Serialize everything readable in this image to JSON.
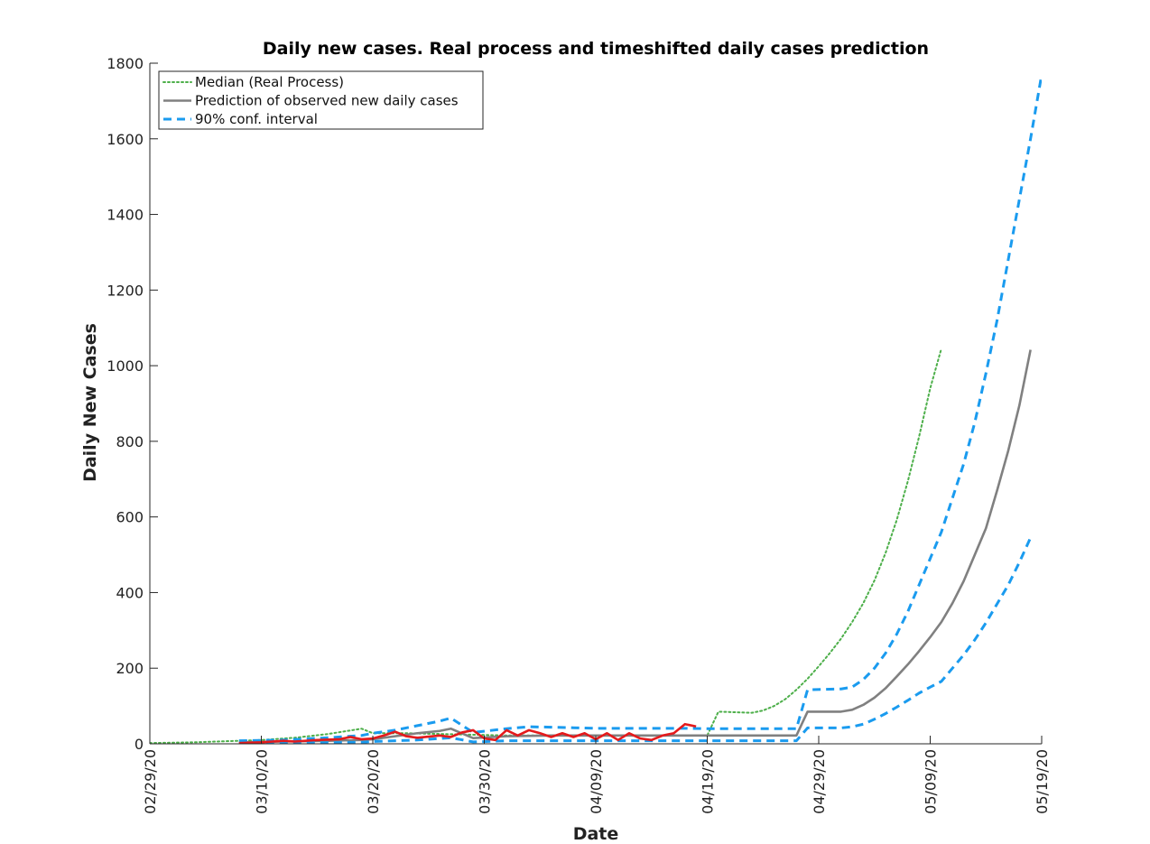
{
  "chart_data": {
    "type": "line",
    "title": "Daily new cases. Real process and timeshifted daily cases prediction",
    "xlabel": "Date",
    "ylabel": "Daily New Cases",
    "x_axis_type": "date",
    "xlim": [
      "2020-02-29",
      "2020-05-19"
    ],
    "ylim": [
      0,
      1800
    ],
    "x_ticks": [
      "2020-02-29",
      "2020-03-10",
      "2020-03-20",
      "2020-03-30",
      "2020-04-09",
      "2020-04-19",
      "2020-04-29",
      "2020-05-09",
      "2020-05-19"
    ],
    "x_tick_labels": [
      "02/29/20",
      "03/10/20",
      "03/20/20",
      "03/30/20",
      "04/09/20",
      "04/19/20",
      "04/29/20",
      "05/09/20",
      "05/19/20"
    ],
    "y_ticks": [
      0,
      200,
      400,
      600,
      800,
      1000,
      1200,
      1400,
      1600,
      1800
    ],
    "y_tick_labels": [
      "0",
      "200",
      "400",
      "600",
      "800",
      "1000",
      "1200",
      "1400",
      "1600",
      "1800"
    ],
    "grid": false,
    "legend": {
      "position": "top-left",
      "entries": [
        {
          "label": "Median (Real Process)",
          "series": "median",
          "style": "dotted",
          "color": "#4daf4a"
        },
        {
          "label": "Prediction of observed new daily cases",
          "series": "prediction",
          "style": "solid",
          "color": "#808080"
        },
        {
          "label": "90% conf. interval",
          "series": "ci_upper",
          "style": "dashed",
          "color": "#1a9bef"
        }
      ]
    },
    "series": [
      {
        "id": "median",
        "name": "Median (Real Process)",
        "color": "#4daf4a",
        "style": "dotted",
        "points": [
          [
            "2020-02-29",
            2
          ],
          [
            "2020-03-04",
            4
          ],
          [
            "2020-03-08",
            8
          ],
          [
            "2020-03-10",
            10
          ],
          [
            "2020-03-13",
            16
          ],
          [
            "2020-03-16",
            26
          ],
          [
            "2020-03-19",
            40
          ],
          [
            "2020-03-20",
            28
          ],
          [
            "2020-03-23",
            28
          ],
          [
            "2020-03-26",
            26
          ],
          [
            "2020-03-29",
            24
          ],
          [
            "2020-04-01",
            22
          ],
          [
            "2020-04-05",
            22
          ],
          [
            "2020-04-09",
            22
          ],
          [
            "2020-04-13",
            22
          ],
          [
            "2020-04-17",
            22
          ],
          [
            "2020-04-19",
            22
          ],
          [
            "2020-04-20",
            85
          ],
          [
            "2020-04-23",
            82
          ],
          [
            "2020-04-24",
            88
          ],
          [
            "2020-04-25",
            100
          ],
          [
            "2020-04-26",
            118
          ],
          [
            "2020-04-27",
            143
          ],
          [
            "2020-04-28",
            172
          ],
          [
            "2020-04-29",
            205
          ],
          [
            "2020-04-30",
            240
          ],
          [
            "2020-05-01",
            278
          ],
          [
            "2020-05-02",
            322
          ],
          [
            "2020-05-03",
            372
          ],
          [
            "2020-05-04",
            432
          ],
          [
            "2020-05-05",
            505
          ],
          [
            "2020-05-06",
            592
          ],
          [
            "2020-05-07",
            695
          ],
          [
            "2020-05-08",
            812
          ],
          [
            "2020-05-09",
            940
          ],
          [
            "2020-05-10",
            1045
          ]
        ]
      },
      {
        "id": "prediction",
        "name": "Prediction of observed new daily cases",
        "color": "#808080",
        "style": "solid",
        "points": [
          [
            "2020-03-08",
            4
          ],
          [
            "2020-03-12",
            6
          ],
          [
            "2020-03-16",
            8
          ],
          [
            "2020-03-19",
            10
          ],
          [
            "2020-03-20",
            12
          ],
          [
            "2020-03-22",
            20
          ],
          [
            "2020-03-24",
            28
          ],
          [
            "2020-03-26",
            34
          ],
          [
            "2020-03-27",
            40
          ],
          [
            "2020-03-29",
            15
          ],
          [
            "2020-04-01",
            20
          ],
          [
            "2020-04-05",
            22
          ],
          [
            "2020-04-09",
            22
          ],
          [
            "2020-04-13",
            22
          ],
          [
            "2020-04-17",
            22
          ],
          [
            "2020-04-21",
            22
          ],
          [
            "2020-04-25",
            22
          ],
          [
            "2020-04-27",
            22
          ],
          [
            "2020-04-28",
            85
          ],
          [
            "2020-05-01",
            85
          ],
          [
            "2020-05-02",
            90
          ],
          [
            "2020-05-03",
            103
          ],
          [
            "2020-05-04",
            122
          ],
          [
            "2020-05-05",
            147
          ],
          [
            "2020-05-06",
            178
          ],
          [
            "2020-05-07",
            210
          ],
          [
            "2020-05-08",
            245
          ],
          [
            "2020-05-09",
            282
          ],
          [
            "2020-05-10",
            322
          ],
          [
            "2020-05-11",
            372
          ],
          [
            "2020-05-12",
            430
          ],
          [
            "2020-05-13",
            500
          ],
          [
            "2020-05-14",
            570
          ],
          [
            "2020-05-15",
            670
          ],
          [
            "2020-05-16",
            775
          ],
          [
            "2020-05-17",
            895
          ],
          [
            "2020-05-18",
            1042
          ]
        ]
      },
      {
        "id": "ci_upper",
        "name": "90% conf. interval",
        "color": "#1a9bef",
        "style": "dashed",
        "points": [
          [
            "2020-03-08",
            8
          ],
          [
            "2020-03-12",
            10
          ],
          [
            "2020-03-16",
            16
          ],
          [
            "2020-03-19",
            22
          ],
          [
            "2020-03-20",
            28
          ],
          [
            "2020-03-22",
            36
          ],
          [
            "2020-03-24",
            48
          ],
          [
            "2020-03-26",
            60
          ],
          [
            "2020-03-27",
            68
          ],
          [
            "2020-03-29",
            30
          ],
          [
            "2020-04-01",
            40
          ],
          [
            "2020-04-03",
            45
          ],
          [
            "2020-04-05",
            44
          ],
          [
            "2020-04-09",
            41
          ],
          [
            "2020-04-13",
            41
          ],
          [
            "2020-04-17",
            41
          ],
          [
            "2020-04-19",
            40
          ],
          [
            "2020-04-23",
            40
          ],
          [
            "2020-04-27",
            40
          ],
          [
            "2020-04-28",
            143
          ],
          [
            "2020-05-01",
            145
          ],
          [
            "2020-05-02",
            150
          ],
          [
            "2020-05-03",
            170
          ],
          [
            "2020-05-04",
            200
          ],
          [
            "2020-05-05",
            240
          ],
          [
            "2020-05-06",
            290
          ],
          [
            "2020-05-07",
            350
          ],
          [
            "2020-05-08",
            420
          ],
          [
            "2020-05-09",
            490
          ],
          [
            "2020-05-10",
            560
          ],
          [
            "2020-05-11",
            650
          ],
          [
            "2020-05-12",
            740
          ],
          [
            "2020-05-13",
            850
          ],
          [
            "2020-05-14",
            980
          ],
          [
            "2020-05-15",
            1120
          ],
          [
            "2020-05-16",
            1280
          ],
          [
            "2020-05-17",
            1440
          ],
          [
            "2020-05-18",
            1600
          ],
          [
            "2020-05-19",
            1770
          ]
        ]
      },
      {
        "id": "ci_lower",
        "name": "",
        "color": "#1a9bef",
        "style": "dashed",
        "points": [
          [
            "2020-03-08",
            1
          ],
          [
            "2020-03-12",
            2
          ],
          [
            "2020-03-16",
            3
          ],
          [
            "2020-03-19",
            4
          ],
          [
            "2020-03-20",
            6
          ],
          [
            "2020-03-24",
            10
          ],
          [
            "2020-03-27",
            16
          ],
          [
            "2020-03-29",
            5
          ],
          [
            "2020-04-01",
            8
          ],
          [
            "2020-04-05",
            8
          ],
          [
            "2020-04-09",
            8
          ],
          [
            "2020-04-13",
            8
          ],
          [
            "2020-04-17",
            8
          ],
          [
            "2020-04-21",
            8
          ],
          [
            "2020-04-25",
            8
          ],
          [
            "2020-04-27",
            8
          ],
          [
            "2020-04-28",
            42
          ],
          [
            "2020-05-01",
            42
          ],
          [
            "2020-05-02",
            45
          ],
          [
            "2020-05-03",
            52
          ],
          [
            "2020-05-04",
            65
          ],
          [
            "2020-05-05",
            80
          ],
          [
            "2020-05-06",
            97
          ],
          [
            "2020-05-07",
            115
          ],
          [
            "2020-05-08",
            134
          ],
          [
            "2020-05-09",
            150
          ],
          [
            "2020-05-10",
            165
          ],
          [
            "2020-05-11",
            200
          ],
          [
            "2020-05-12",
            235
          ],
          [
            "2020-05-13",
            275
          ],
          [
            "2020-05-14",
            320
          ],
          [
            "2020-05-15",
            370
          ],
          [
            "2020-05-16",
            420
          ],
          [
            "2020-05-17",
            480
          ],
          [
            "2020-05-18",
            545
          ]
        ]
      },
      {
        "id": "observed",
        "name": "",
        "color": "#e41a1c",
        "style": "solid",
        "points": [
          [
            "2020-03-08",
            2
          ],
          [
            "2020-03-10",
            4
          ],
          [
            "2020-03-12",
            8
          ],
          [
            "2020-03-13",
            6
          ],
          [
            "2020-03-15",
            10
          ],
          [
            "2020-03-17",
            12
          ],
          [
            "2020-03-18",
            18
          ],
          [
            "2020-03-19",
            12
          ],
          [
            "2020-03-20",
            14
          ],
          [
            "2020-03-21",
            22
          ],
          [
            "2020-03-22",
            32
          ],
          [
            "2020-03-23",
            20
          ],
          [
            "2020-03-24",
            16
          ],
          [
            "2020-03-26",
            22
          ],
          [
            "2020-03-27",
            18
          ],
          [
            "2020-03-28",
            30
          ],
          [
            "2020-03-29",
            36
          ],
          [
            "2020-03-30",
            14
          ],
          [
            "2020-03-31",
            10
          ],
          [
            "2020-04-01",
            36
          ],
          [
            "2020-04-02",
            22
          ],
          [
            "2020-04-03",
            36
          ],
          [
            "2020-04-04",
            28
          ],
          [
            "2020-04-05",
            18
          ],
          [
            "2020-04-06",
            28
          ],
          [
            "2020-04-07",
            18
          ],
          [
            "2020-04-08",
            28
          ],
          [
            "2020-04-09",
            12
          ],
          [
            "2020-04-10",
            28
          ],
          [
            "2020-04-11",
            10
          ],
          [
            "2020-04-12",
            28
          ],
          [
            "2020-04-13",
            14
          ],
          [
            "2020-04-14",
            10
          ],
          [
            "2020-04-15",
            22
          ],
          [
            "2020-04-16",
            28
          ],
          [
            "2020-04-17",
            52
          ],
          [
            "2020-04-18",
            46
          ]
        ]
      }
    ]
  }
}
